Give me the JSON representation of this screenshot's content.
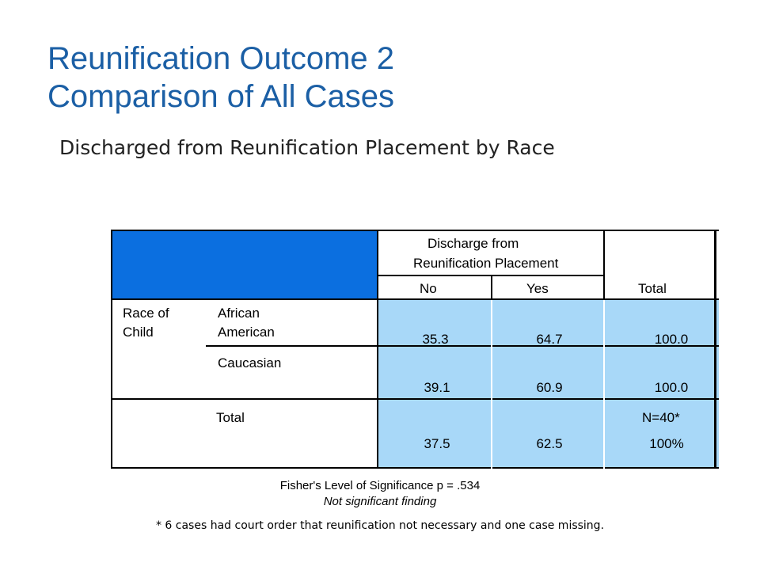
{
  "slide": {
    "title_line1": "Reunification Outcome 2",
    "title_line2": "Comparison of All Cases",
    "subtitle": "Discharged from Reunification Placement by Race"
  },
  "table": {
    "header": {
      "group_line1": "Discharge from",
      "group_line2": "Reunification Placement",
      "col_no": "No",
      "col_yes": "Yes",
      "col_total": "Total"
    },
    "row_group_line1": "Race of",
    "row_group_line2": "Child",
    "rows": [
      {
        "label_line1": "African",
        "label_line2": "American",
        "no": "35.3",
        "yes": "64.7",
        "total": "100.0"
      },
      {
        "label_line1": "Caucasian",
        "no": "39.1",
        "yes": "60.9",
        "total": "100.0"
      }
    ],
    "total_row": {
      "label": "Total",
      "no": "37.5",
      "yes": "62.5",
      "n": "N=40*",
      "total": "100%"
    }
  },
  "footer": {
    "significance": "Fisher's Level of Significance p = .534",
    "finding": "Not significant finding",
    "note": "* 6 cases had court order that reunification not necessary and one case missing."
  },
  "colors": {
    "title": "#1b5fa5",
    "header_block": "#0b6fe0",
    "data_block": "#a8d8f8"
  }
}
